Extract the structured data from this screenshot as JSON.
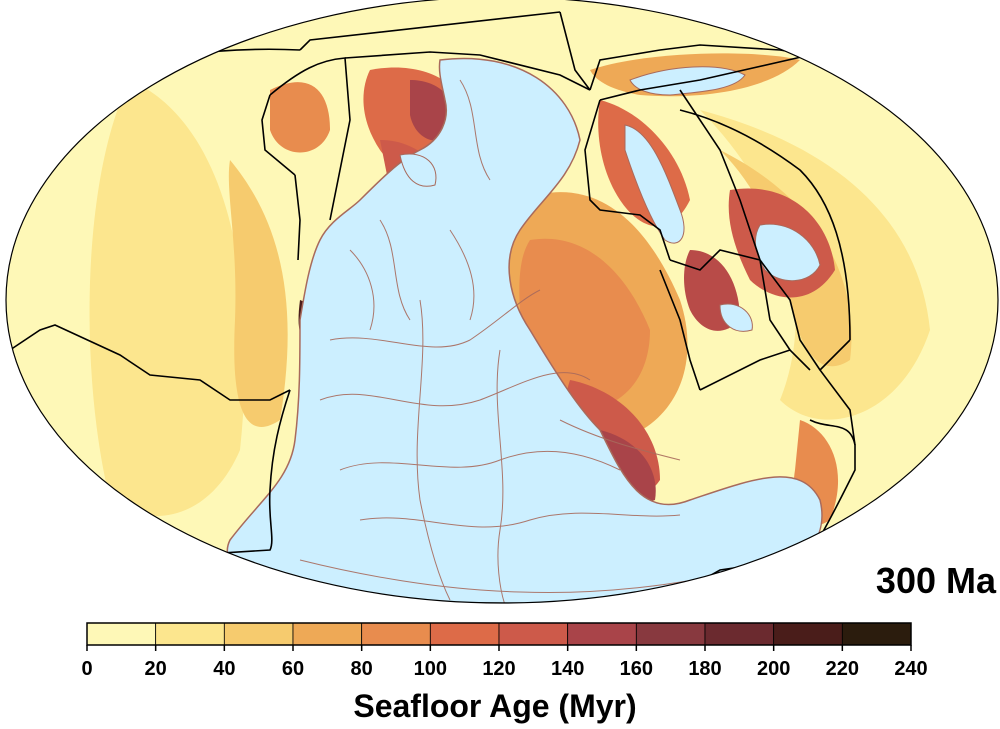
{
  "map": {
    "time_label": "300 Ma",
    "projection": "mollweide",
    "ocean_colors": [
      "#fff6b6",
      "#fde591",
      "#f7cb74",
      "#eeaa59",
      "#e78a4e",
      "#dc6c4a",
      "#b84b48",
      "#8c3840",
      "#6b2a30",
      "#4a1f20",
      "#2b1a10"
    ],
    "continent_color": "#ccefff",
    "coastline_color": "#a86a5c",
    "plate_boundary_color": "#000000"
  },
  "colorbar": {
    "title": "Seafloor Age (Myr)",
    "ticks": [
      "0",
      "20",
      "40",
      "60",
      "80",
      "100",
      "120",
      "140",
      "160",
      "180",
      "200",
      "220",
      "240"
    ],
    "colors": [
      "#fef8b7",
      "#fce68e",
      "#f6cb6e",
      "#eea956",
      "#e88c4e",
      "#dd6b48",
      "#cd5a4a",
      "#a94449",
      "#88393f",
      "#6b2a2f",
      "#4a1d1a",
      "#2b1c0d"
    ]
  }
}
